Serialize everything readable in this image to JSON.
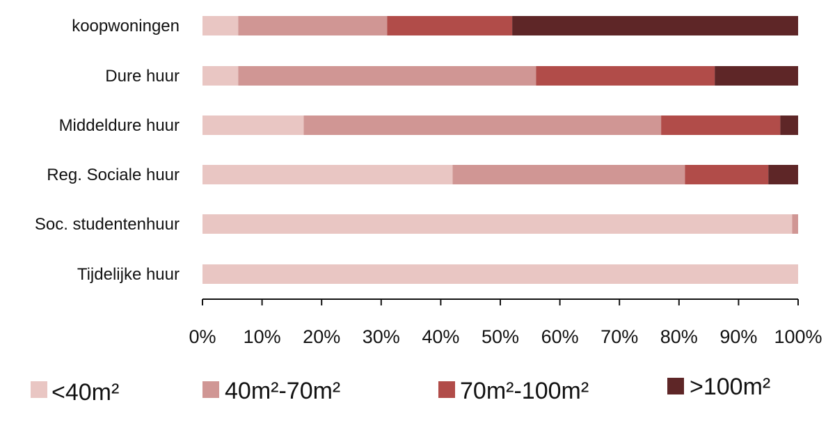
{
  "chart_data": {
    "type": "bar",
    "orientation": "horizontal",
    "stacked": true,
    "categories": [
      "koopwoningen",
      "Dure huur",
      "Middeldure huur",
      "Reg. Sociale huur",
      "Soc. studentenhuur",
      "Tijdelijke huur"
    ],
    "series": [
      {
        "name": "<40m²",
        "color": "#e9c6c3",
        "values": [
          6,
          6,
          17,
          42,
          99,
          100
        ]
      },
      {
        "name": "40m²-70m²",
        "color": "#d09694",
        "values": [
          25,
          50,
          60,
          39,
          1,
          0
        ]
      },
      {
        "name": "70m²-100m²",
        "color": "#b14c49",
        "values": [
          21,
          30,
          20,
          14,
          0,
          0
        ]
      },
      {
        "name": ">100m²",
        "color": "#5e2627",
        "values": [
          48,
          14,
          3,
          5,
          0,
          0
        ]
      }
    ],
    "x_ticks": [
      "0%",
      "10%",
      "20%",
      "30%",
      "40%",
      "50%",
      "60%",
      "70%",
      "80%",
      "90%",
      "100%"
    ],
    "xlim": [
      0,
      100
    ],
    "grid": false,
    "legend_position": "bottom"
  }
}
